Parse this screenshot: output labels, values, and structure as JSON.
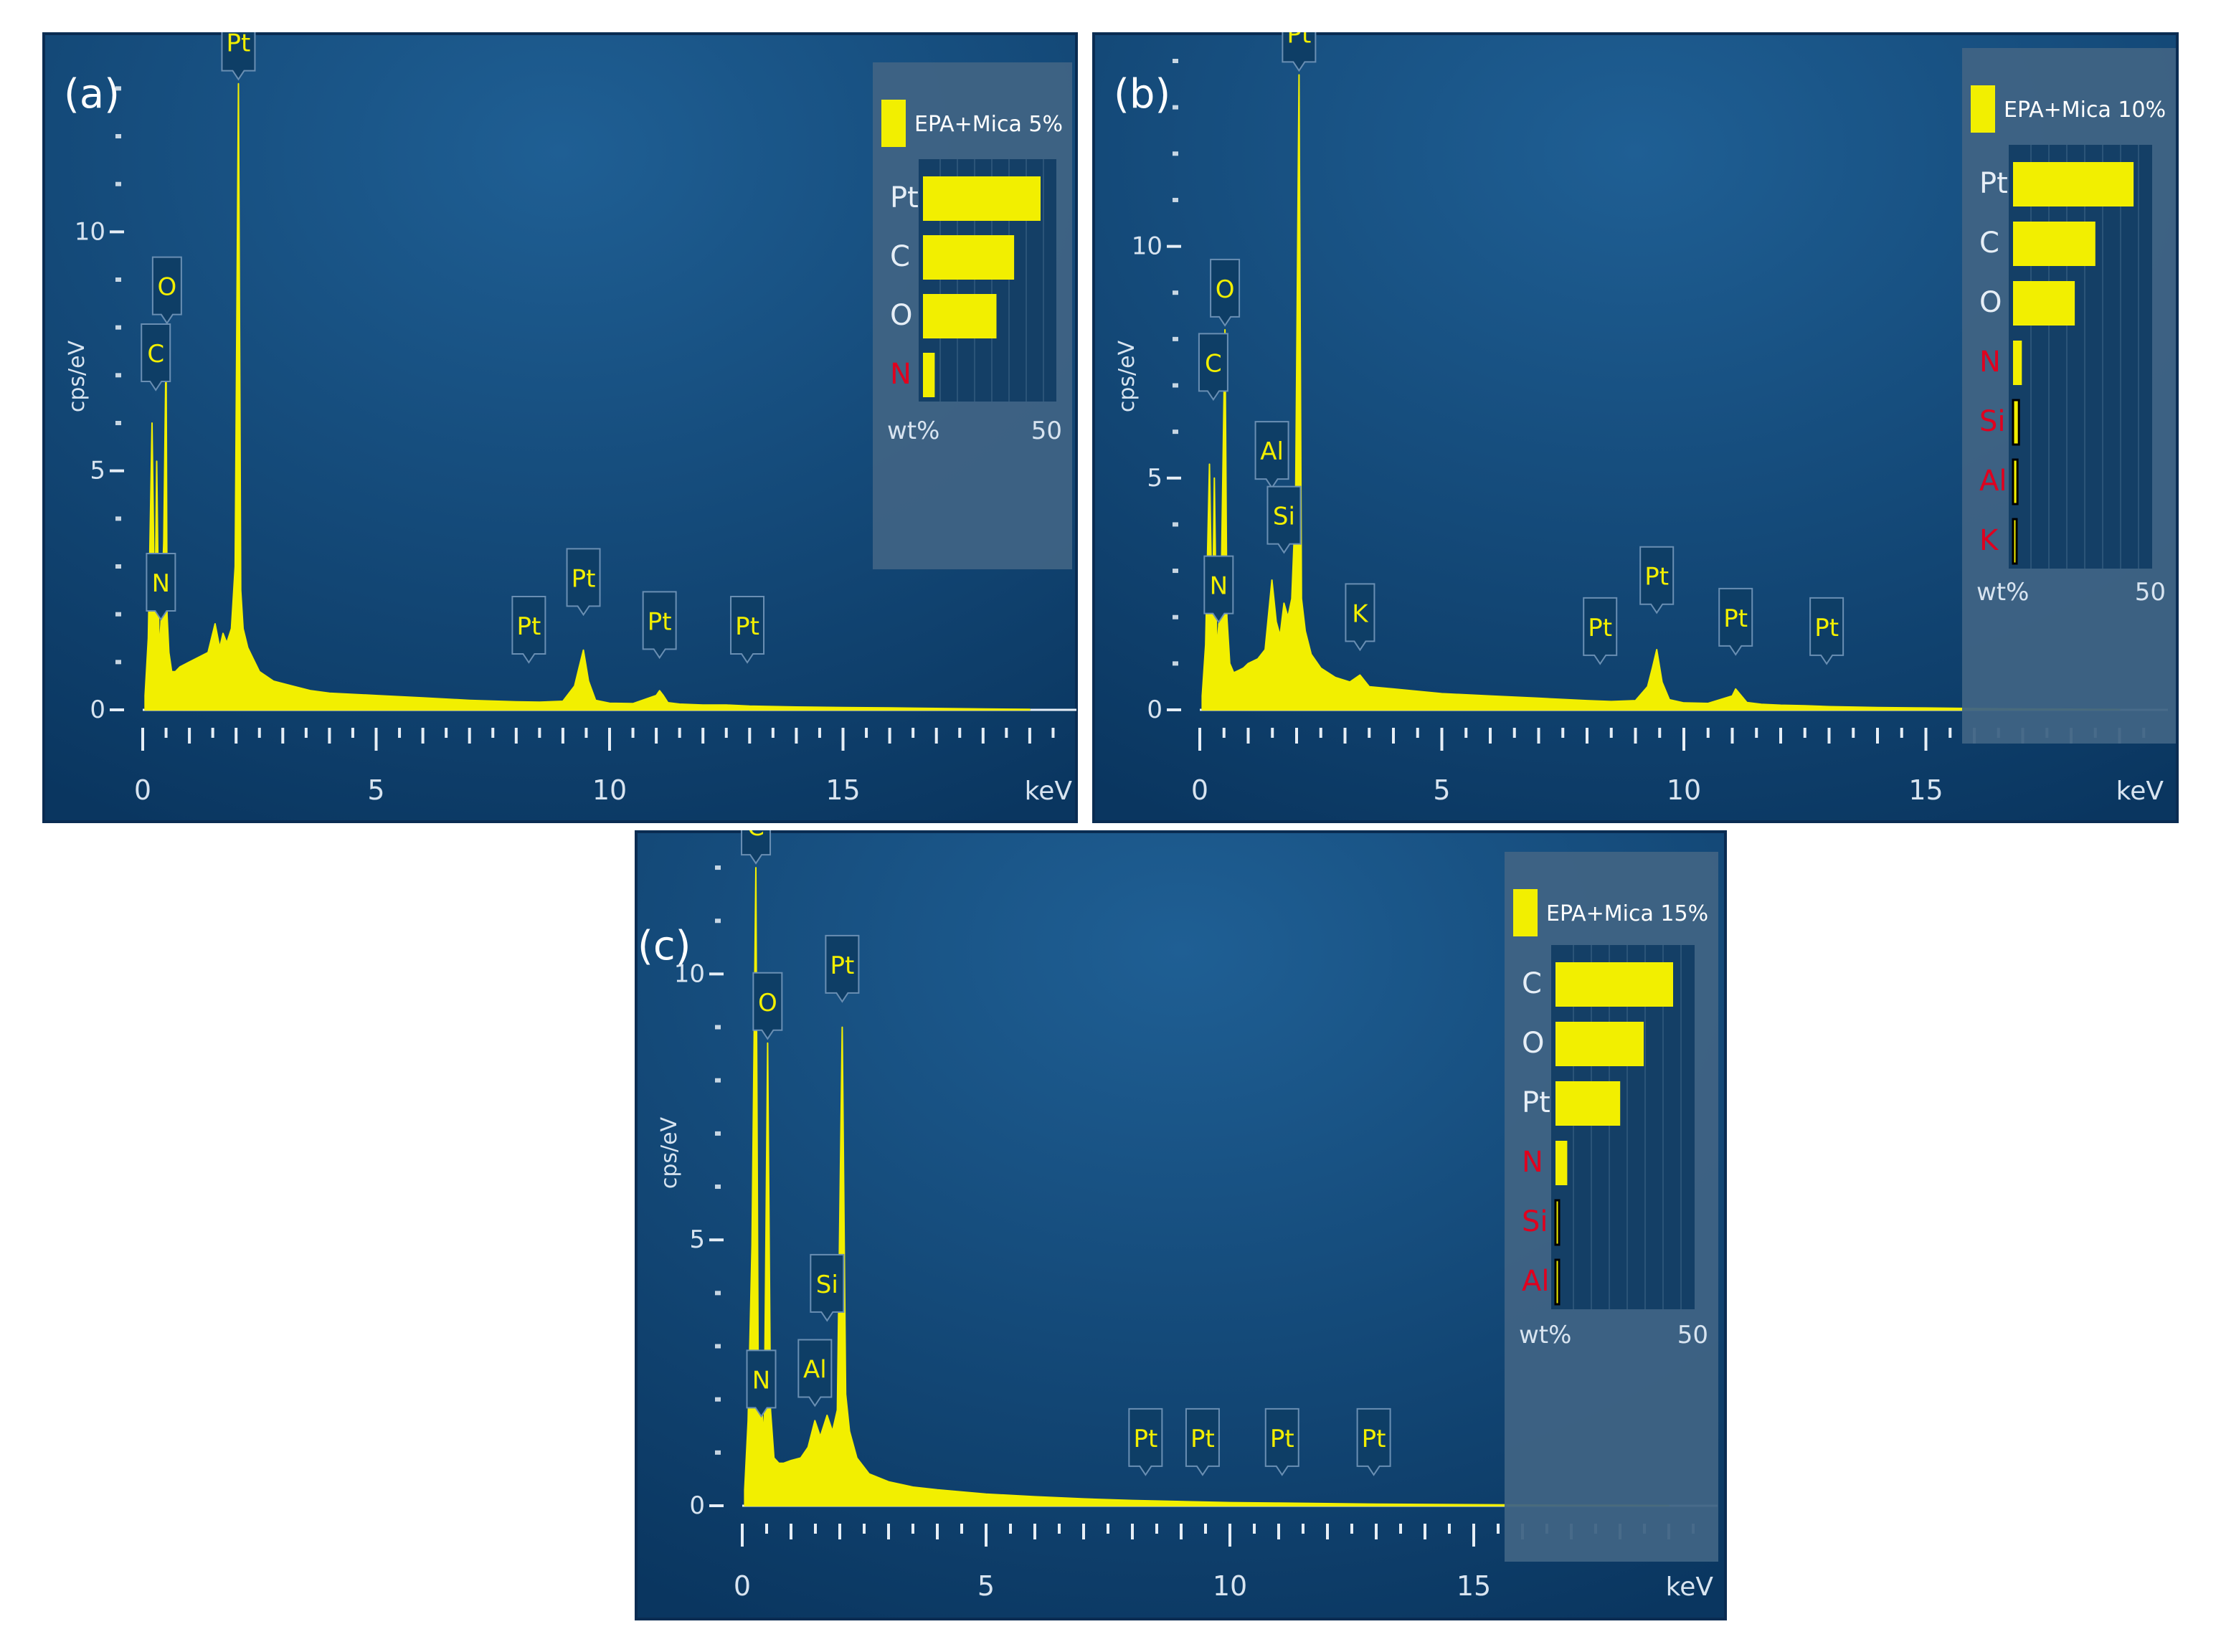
{
  "colors": {
    "background_outer": "#ffffff",
    "panel_border": "#0a2c52",
    "panel_bg_light": "#1f5f94",
    "panel_bg_dark": "#0a3660",
    "spectrum": "#f2ef00",
    "axis": "#e6eef6",
    "label_text": "#d8e4f0",
    "peak_label_bg": "#0e3e66",
    "peak_label_border": "#6a8fb3",
    "bar_track_bg": "#143f66",
    "legend_panel": "#3f6384",
    "minor_element_text": "#e0001e",
    "major_element_text": "#e6eef6"
  },
  "chart_data": [
    {
      "panel_label": "(a)",
      "type": "area",
      "ylabel": "cps/eV",
      "xunit": "keV",
      "xlim": [
        0,
        20
      ],
      "ylim": [
        0,
        13.5
      ],
      "yticks": [
        0,
        5,
        10
      ],
      "xticks": [
        0,
        5,
        10,
        15
      ],
      "spectrum_color": "#f2ef00",
      "spectrum": {
        "x": [
          0.05,
          0.12,
          0.2,
          0.26,
          0.3,
          0.35,
          0.39,
          0.45,
          0.5,
          0.52,
          0.56,
          0.62,
          0.7,
          0.8,
          0.9,
          1.0,
          1.2,
          1.4,
          1.55,
          1.65,
          1.72,
          1.8,
          1.9,
          1.98,
          2.05,
          2.1,
          2.15,
          2.25,
          2.35,
          2.5,
          2.8,
          3.2,
          3.6,
          4.0,
          5.0,
          6.0,
          7.0,
          8.0,
          8.5,
          9.0,
          9.25,
          9.35,
          9.44,
          9.55,
          9.7,
          10.0,
          10.5,
          11.0,
          11.07,
          11.15,
          11.25,
          11.5,
          12.0,
          12.5,
          13.0,
          14.0,
          15.0,
          16.0,
          17.0,
          18.0,
          19.0
        ],
        "y": [
          0.3,
          1.5,
          6.0,
          1.6,
          5.2,
          1.2,
          1.8,
          3.5,
          7.6,
          2.0,
          1.2,
          0.8,
          0.8,
          0.9,
          0.95,
          1.0,
          1.1,
          1.2,
          1.8,
          1.3,
          1.6,
          1.4,
          1.7,
          3.0,
          13.1,
          2.5,
          1.7,
          1.3,
          1.1,
          0.8,
          0.6,
          0.5,
          0.4,
          0.35,
          0.3,
          0.25,
          0.2,
          0.17,
          0.16,
          0.18,
          0.5,
          0.9,
          1.25,
          0.6,
          0.2,
          0.14,
          0.13,
          0.3,
          0.4,
          0.3,
          0.15,
          0.12,
          0.1,
          0.1,
          0.08,
          0.06,
          0.05,
          0.04,
          0.03,
          0.02,
          0.01
        ]
      },
      "peak_labels": [
        {
          "element": "Pt",
          "x": 2.05,
          "y": 13.1
        },
        {
          "element": "O",
          "x": 0.52,
          "y": 8.0
        },
        {
          "element": "C",
          "x": 0.28,
          "y": 6.6
        },
        {
          "element": "N",
          "x": 0.39,
          "y": 1.8
        },
        {
          "element": "Pt",
          "x": 8.27,
          "y": 0.9
        },
        {
          "element": "Pt",
          "x": 9.44,
          "y": 1.9
        },
        {
          "element": "Pt",
          "x": 11.07,
          "y": 1.0
        },
        {
          "element": "Pt",
          "x": 12.95,
          "y": 0.9
        }
      ],
      "legend": {
        "series_name": "EPA+Mica 5%",
        "bar_axis_label": "wt%",
        "bar_axis_max_label": "50",
        "bar_max": 50,
        "elements": [
          {
            "element": "Pt",
            "wt": 40,
            "minor": false
          },
          {
            "element": "C",
            "wt": 31,
            "minor": false
          },
          {
            "element": "O",
            "wt": 25,
            "minor": false
          },
          {
            "element": "N",
            "wt": 4,
            "minor": true
          }
        ]
      }
    },
    {
      "panel_label": "(b)",
      "type": "area",
      "ylabel": "cps/eV",
      "xunit": "keV",
      "xlim": [
        0,
        20
      ],
      "ylim": [
        0,
        14.0
      ],
      "yticks": [
        0,
        5,
        10
      ],
      "xticks": [
        0,
        5,
        10,
        15
      ],
      "spectrum_color": "#f2ef00",
      "spectrum": {
        "x": [
          0.05,
          0.12,
          0.2,
          0.26,
          0.3,
          0.35,
          0.39,
          0.45,
          0.52,
          0.56,
          0.62,
          0.7,
          0.8,
          0.9,
          1.0,
          1.2,
          1.35,
          1.49,
          1.58,
          1.66,
          1.74,
          1.82,
          1.9,
          1.98,
          2.05,
          2.1,
          2.18,
          2.3,
          2.5,
          2.8,
          3.1,
          3.31,
          3.5,
          4.0,
          5.0,
          6.0,
          7.0,
          8.0,
          8.5,
          9.0,
          9.25,
          9.35,
          9.44,
          9.55,
          9.7,
          10.0,
          10.5,
          11.0,
          11.07,
          11.15,
          11.3,
          11.6,
          12.0,
          12.5,
          13.0,
          14.0,
          15.0,
          16.0,
          17.0,
          18.0,
          19.0
        ],
        "y": [
          0.3,
          1.4,
          5.3,
          1.6,
          5.0,
          1.3,
          1.8,
          3.2,
          8.2,
          2.0,
          1.0,
          0.8,
          0.85,
          0.9,
          1.0,
          1.1,
          1.3,
          2.8,
          1.9,
          1.6,
          2.3,
          2.0,
          2.4,
          4.5,
          13.7,
          2.4,
          1.7,
          1.2,
          0.9,
          0.7,
          0.6,
          0.75,
          0.5,
          0.45,
          0.35,
          0.3,
          0.25,
          0.2,
          0.18,
          0.2,
          0.5,
          0.9,
          1.3,
          0.6,
          0.22,
          0.15,
          0.14,
          0.3,
          0.45,
          0.35,
          0.16,
          0.12,
          0.1,
          0.09,
          0.07,
          0.05,
          0.04,
          0.03,
          0.02,
          0.015,
          0.01
        ]
      },
      "peak_labels": [
        {
          "element": "Pt",
          "x": 2.05,
          "y": 13.7
        },
        {
          "element": "O",
          "x": 0.52,
          "y": 8.2
        },
        {
          "element": "C",
          "x": 0.28,
          "y": 6.6
        },
        {
          "element": "N",
          "x": 0.39,
          "y": 1.8
        },
        {
          "element": "Al",
          "x": 1.49,
          "y": 4.7
        },
        {
          "element": "Si",
          "x": 1.74,
          "y": 3.3
        },
        {
          "element": "K",
          "x": 3.31,
          "y": 1.2
        },
        {
          "element": "Pt",
          "x": 8.27,
          "y": 0.9
        },
        {
          "element": "Pt",
          "x": 9.44,
          "y": 2.0
        },
        {
          "element": "Pt",
          "x": 11.07,
          "y": 1.1
        },
        {
          "element": "Pt",
          "x": 12.95,
          "y": 0.9
        }
      ],
      "legend": {
        "series_name": "EPA+Mica 10%",
        "bar_axis_label": "wt%",
        "bar_axis_max_label": "50",
        "bar_max": 50,
        "elements": [
          {
            "element": "Pt",
            "wt": 41,
            "minor": false
          },
          {
            "element": "C",
            "wt": 28,
            "minor": false
          },
          {
            "element": "O",
            "wt": 21,
            "minor": false
          },
          {
            "element": "N",
            "wt": 3,
            "minor": true
          },
          {
            "element": "Si",
            "wt": 2,
            "minor": true
          },
          {
            "element": "Al",
            "wt": 1.5,
            "minor": true
          },
          {
            "element": "K",
            "wt": 0.5,
            "minor": true
          }
        ]
      }
    },
    {
      "panel_label": "(c)",
      "type": "area",
      "ylabel": "cps/eV",
      "xunit": "keV",
      "xlim": [
        0,
        20
      ],
      "ylim": [
        0,
        12.5
      ],
      "yticks": [
        0,
        5,
        10
      ],
      "xticks": [
        0,
        5,
        10,
        15
      ],
      "spectrum_color": "#f2ef00",
      "spectrum": {
        "x": [
          0.05,
          0.12,
          0.2,
          0.28,
          0.33,
          0.39,
          0.45,
          0.52,
          0.58,
          0.65,
          0.75,
          0.85,
          1.0,
          1.2,
          1.35,
          1.49,
          1.6,
          1.74,
          1.85,
          1.95,
          2.05,
          2.12,
          2.2,
          2.35,
          2.6,
          3.0,
          3.5,
          4.0,
          5.0,
          6.0,
          7.0,
          8.0,
          9.0,
          10.0,
          11.0,
          12.0,
          13.0,
          14.0,
          15.0,
          16.0,
          17.0,
          18.0,
          19.0
        ],
        "y": [
          0.3,
          1.6,
          4.9,
          12.0,
          2.0,
          1.9,
          1.3,
          8.7,
          1.8,
          0.9,
          0.8,
          0.8,
          0.85,
          0.9,
          1.1,
          1.6,
          1.3,
          1.7,
          1.4,
          1.8,
          9.0,
          2.1,
          1.4,
          0.9,
          0.6,
          0.45,
          0.35,
          0.3,
          0.22,
          0.17,
          0.13,
          0.1,
          0.08,
          0.06,
          0.05,
          0.04,
          0.03,
          0.025,
          0.02,
          0.015,
          0.01,
          0.01,
          0.005
        ]
      },
      "peak_labels": [
        {
          "element": "C",
          "x": 0.28,
          "y": 12.0
        },
        {
          "element": "O",
          "x": 0.52,
          "y": 8.7
        },
        {
          "element": "Pt",
          "x": 2.05,
          "y": 9.4
        },
        {
          "element": "Si",
          "x": 1.74,
          "y": 3.4
        },
        {
          "element": "Al",
          "x": 1.49,
          "y": 1.8
        },
        {
          "element": "N",
          "x": 0.39,
          "y": 1.6
        },
        {
          "element": "Pt",
          "x": 8.27,
          "y": 0.5
        },
        {
          "element": "Pt",
          "x": 9.44,
          "y": 0.5
        },
        {
          "element": "Pt",
          "x": 11.07,
          "y": 0.5
        },
        {
          "element": "Pt",
          "x": 12.95,
          "y": 0.5
        }
      ],
      "legend": {
        "series_name": "EPA+Mica 15%",
        "bar_axis_label": "wt%",
        "bar_axis_max_label": "50",
        "bar_max": 50,
        "elements": [
          {
            "element": "C",
            "wt": 40,
            "minor": false
          },
          {
            "element": "O",
            "wt": 30,
            "minor": false
          },
          {
            "element": "Pt",
            "wt": 22,
            "minor": false
          },
          {
            "element": "N",
            "wt": 4,
            "minor": true
          },
          {
            "element": "Si",
            "wt": 0.8,
            "minor": true
          },
          {
            "element": "Al",
            "wt": 0.6,
            "minor": true
          }
        ]
      }
    }
  ]
}
